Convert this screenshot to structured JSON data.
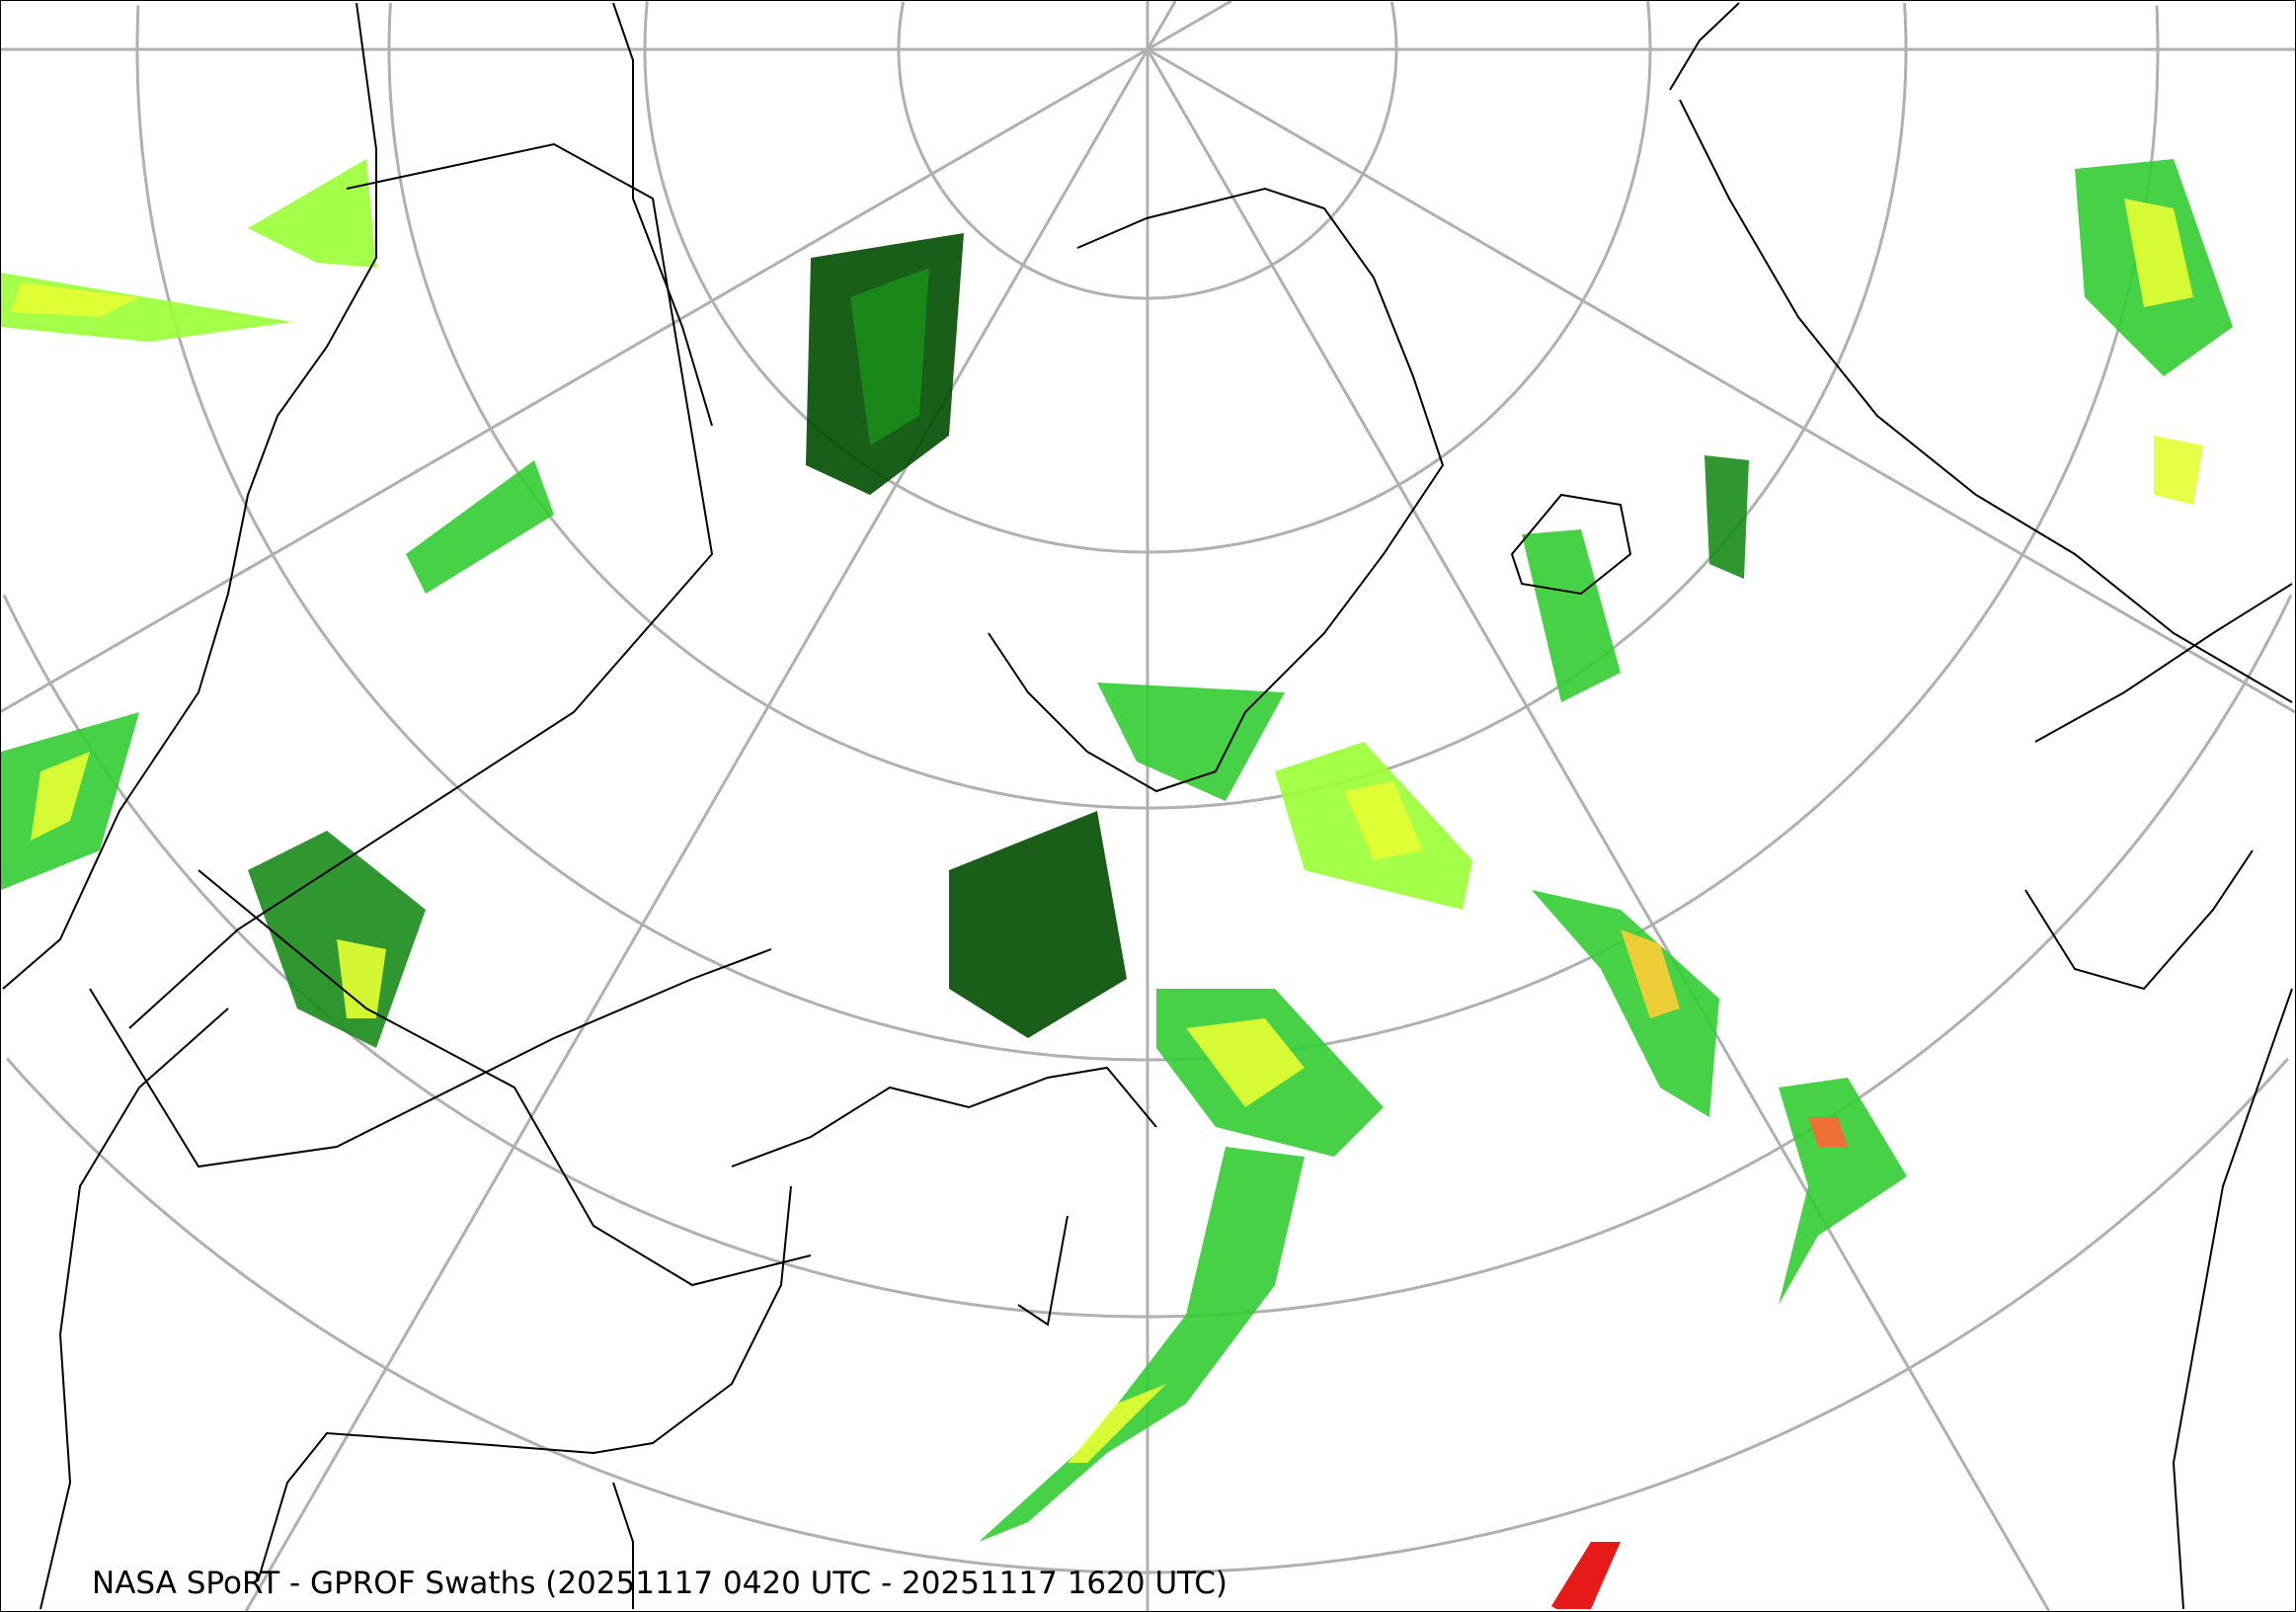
{
  "title": "NASA SPoRT - GPROF Swaths (20251117 0420 UTC - 20251117 1620 UTC)",
  "map": {
    "projection": "polar stereographic",
    "graticule_color": "#b0b0b0",
    "coastline_color": "#000000",
    "precip_colors": [
      "#004d00",
      "#1a8c1a",
      "#33cc33",
      "#99ff33",
      "#e6ff33",
      "#ffcc33",
      "#ff6633",
      "#e60000"
    ]
  }
}
